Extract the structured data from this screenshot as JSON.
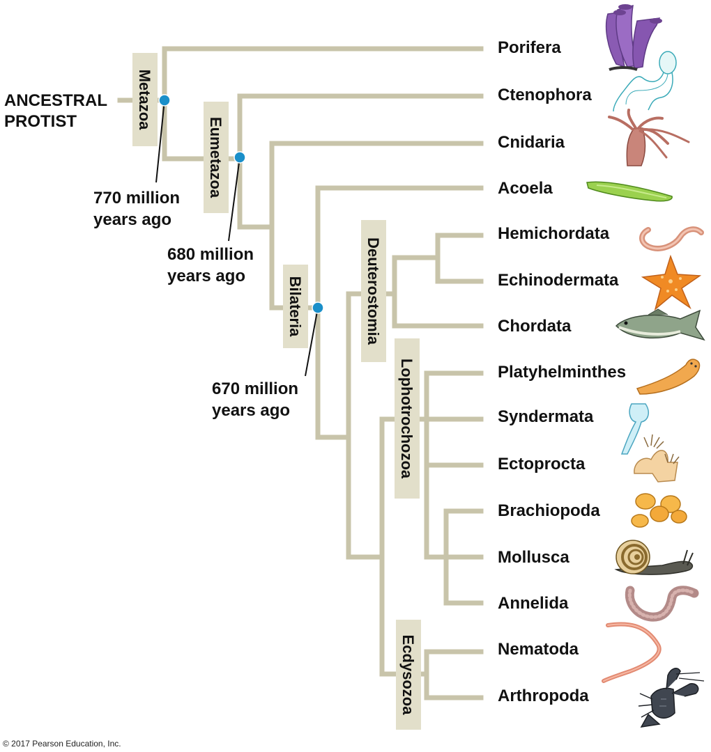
{
  "root_label": [
    "ANCESTRAL",
    "PROTIST"
  ],
  "taxa": {
    "porifera": "Porifera",
    "ctenophora": "Ctenophora",
    "cnidaria": "Cnidaria",
    "acoela": "Acoela",
    "hemichordata": "Hemichordata",
    "echinodermata": "Echinodermata",
    "chordata": "Chordata",
    "platyhelminthes": "Platyhelminthes",
    "syndermata": "Syndermata",
    "ectoprocta": "Ectoprocta",
    "brachiopoda": "Brachiopoda",
    "mollusca": "Mollusca",
    "annelida": "Annelida",
    "nematoda": "Nematoda",
    "arthropoda": "Arthropoda"
  },
  "clades": {
    "metazoa": "Metazoa",
    "eumetazoa": "Eumetazoa",
    "bilateria": "Bilateria",
    "deuterostomia": "Deuterostomia",
    "lophotrochozoa": "Lophotrochozoa",
    "ecdysozoa": "Ecdysozoa"
  },
  "annotations": {
    "metazoa_age": [
      "770 million",
      "years ago"
    ],
    "eumetazoa_age": [
      "680 million",
      "years ago"
    ],
    "bilateria_age": [
      "670 million",
      "years ago"
    ]
  },
  "copyright": "© 2017 Pearson Education, Inc.",
  "colors": {
    "branch": "#c8c4aa",
    "clade_label_bg": "#e2dfca",
    "node_marker": "#1a8fc9"
  },
  "illustrations": [
    "sponge-icon",
    "comb-jelly-icon",
    "hydra-icon",
    "acoel-flatworm-icon",
    "acorn-worm-icon",
    "sea-star-icon",
    "fish-icon",
    "flatworm-icon",
    "rotifer-icon",
    "bryozoan-icon",
    "lamp-shell-icon",
    "snail-icon",
    "earthworm-icon",
    "roundworm-icon",
    "lobster-icon"
  ]
}
